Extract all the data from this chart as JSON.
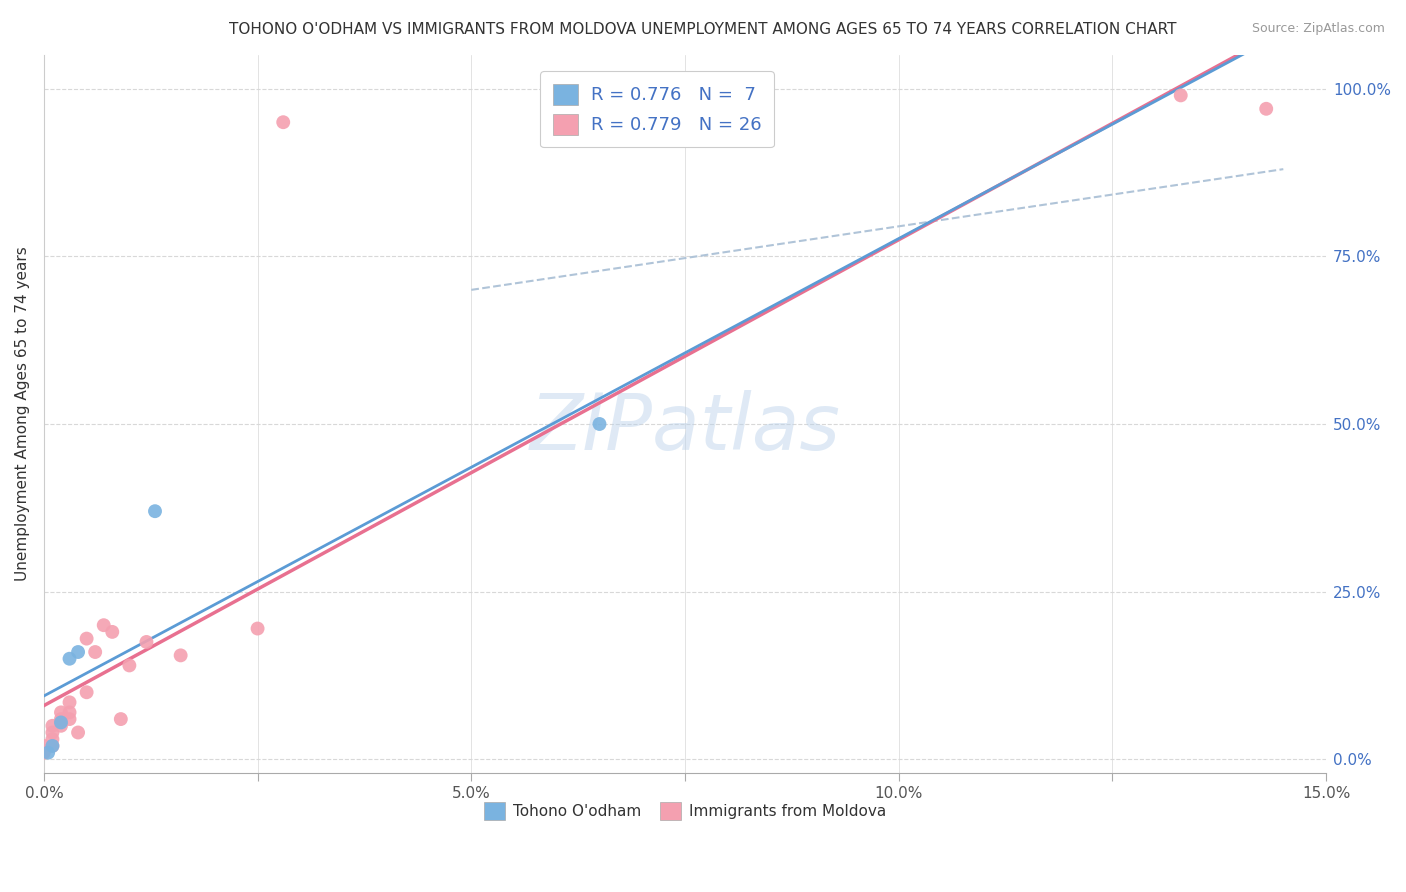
{
  "title": "TOHONO O'ODHAM VS IMMIGRANTS FROM MOLDOVA UNEMPLOYMENT AMONG AGES 65 TO 74 YEARS CORRELATION CHART",
  "source": "Source: ZipAtlas.com",
  "ylabel": "Unemployment Among Ages 65 to 74 years",
  "xlim": [
    0.0,
    0.15
  ],
  "ylim": [
    -0.02,
    1.05
  ],
  "plot_ylim": [
    0.0,
    1.0
  ],
  "xtick_positions": [
    0.0,
    0.025,
    0.05,
    0.075,
    0.1,
    0.125,
    0.15
  ],
  "xticklabels": [
    "0.0%",
    "",
    "5.0%",
    "",
    "10.0%",
    "",
    "15.0%"
  ],
  "yticks_right": [
    0.0,
    0.25,
    0.5,
    0.75,
    1.0
  ],
  "yticklabels_right": [
    "0.0%",
    "25.0%",
    "50.0%",
    "75.0%",
    "100.0%"
  ],
  "watermark": "ZIPatlas",
  "watermark_color": "#b8d0ea",
  "tohono_scatter_x": [
    0.0005,
    0.001,
    0.002,
    0.003,
    0.004,
    0.013,
    0.065
  ],
  "tohono_scatter_y": [
    0.01,
    0.02,
    0.055,
    0.15,
    0.16,
    0.37,
    0.5
  ],
  "moldova_scatter_x": [
    0.0,
    0.0,
    0.001,
    0.001,
    0.001,
    0.001,
    0.002,
    0.002,
    0.002,
    0.003,
    0.003,
    0.003,
    0.004,
    0.005,
    0.005,
    0.006,
    0.007,
    0.008,
    0.009,
    0.01,
    0.012,
    0.016,
    0.025,
    0.028,
    0.133,
    0.143
  ],
  "moldova_scatter_y": [
    0.01,
    0.02,
    0.02,
    0.03,
    0.04,
    0.05,
    0.05,
    0.06,
    0.07,
    0.06,
    0.07,
    0.085,
    0.04,
    0.1,
    0.18,
    0.16,
    0.2,
    0.19,
    0.06,
    0.14,
    0.175,
    0.155,
    0.195,
    0.95,
    0.99,
    0.97
  ],
  "tohono_color": "#7ab3e0",
  "moldova_color": "#f4a0b0",
  "tohono_line_color": "#5b9bd5",
  "moldova_line_color": "#e87090",
  "dashed_line_color": "#b0c4d8",
  "legend_R_tohono": "0.776",
  "legend_N_tohono": "7",
  "legend_R_moldova": "0.779",
  "legend_N_moldova": "26",
  "background_color": "#ffffff",
  "grid_color": "#d8d8d8"
}
